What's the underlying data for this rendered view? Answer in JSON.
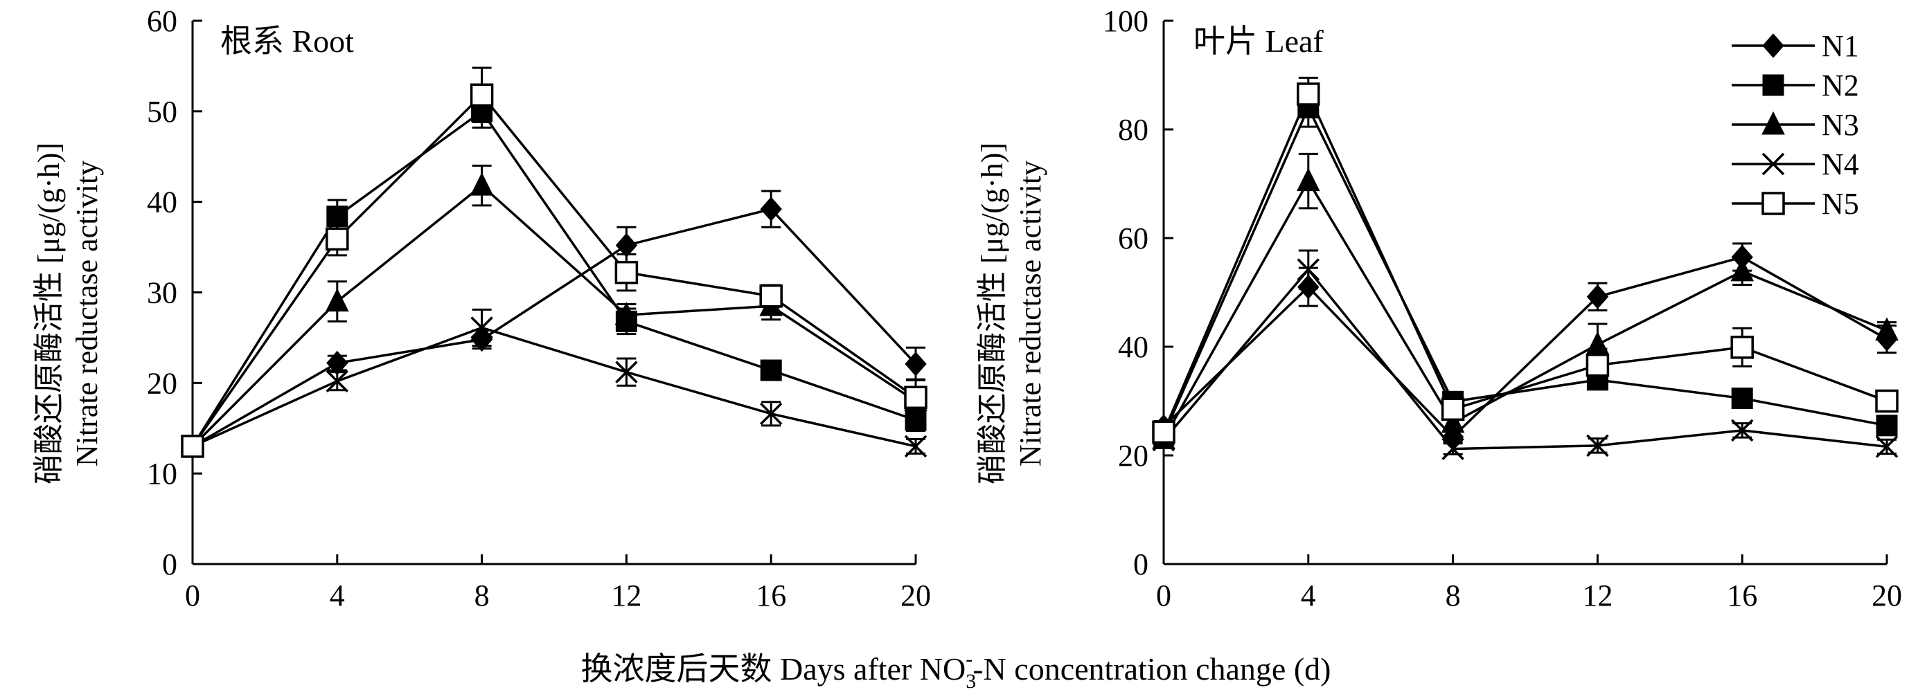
{
  "chart_data": [
    {
      "type": "line",
      "title": "根系 Root",
      "ylabel_cn": "硝酸还原酶活性 [μg/(g·h)]",
      "ylabel_en": "Nitrate reductase activity",
      "x": [
        0,
        4,
        8,
        12,
        16,
        20
      ],
      "xticks": [
        "0",
        "4",
        "8",
        "12",
        "16",
        "20"
      ],
      "xlim": [
        0,
        20
      ],
      "ylim": [
        0,
        60
      ],
      "yticks": [
        0,
        10,
        20,
        30,
        40,
        50,
        60
      ],
      "series": [
        {
          "name": "N1",
          "values": [
            13,
            22.2,
            24.8,
            35.2,
            39.2,
            22.1
          ],
          "errors": [
            0.8,
            0.8,
            1.0,
            2.0,
            2.0,
            1.8
          ]
        },
        {
          "name": "N2",
          "values": [
            13,
            38.4,
            50.0,
            26.8,
            21.4,
            15.9
          ],
          "errors": [
            0.8,
            1.8,
            1.8,
            1.4,
            1.0,
            1.2
          ]
        },
        {
          "name": "N3",
          "values": [
            13,
            29.0,
            41.8,
            27.5,
            28.5,
            18.0
          ],
          "errors": [
            0.8,
            2.2,
            2.2,
            1.2,
            1.5,
            1.2
          ]
        },
        {
          "name": "N4",
          "values": [
            13,
            20.2,
            26.1,
            21.2,
            16.6,
            13.0
          ],
          "errors": [
            0.8,
            1.0,
            2.0,
            1.5,
            1.3,
            0.8
          ]
        },
        {
          "name": "N5",
          "values": [
            13,
            35.9,
            51.8,
            32.2,
            29.6,
            18.4
          ],
          "errors": [
            0.8,
            1.8,
            3.0,
            2.0,
            1.2,
            2.0
          ]
        }
      ]
    },
    {
      "type": "line",
      "title": "叶片 Leaf",
      "ylabel_cn": "硝酸还原酶活性 [μg/(g·h)]",
      "ylabel_en": "Nitrate reductase activity",
      "x": [
        0,
        4,
        8,
        12,
        16,
        20
      ],
      "xticks": [
        "0",
        "4",
        "8",
        "12",
        "16",
        "20"
      ],
      "xlim": [
        0,
        20
      ],
      "ylim": [
        0,
        100
      ],
      "yticks": [
        0,
        20,
        40,
        60,
        80,
        100
      ],
      "series": [
        {
          "name": "N1",
          "values": [
            25.3,
            51.0,
            23.4,
            49.2,
            56.5,
            41.4
          ],
          "errors": [
            1.0,
            3.5,
            1.0,
            2.5,
            2.5,
            2.5
          ]
        },
        {
          "name": "N2",
          "values": [
            23.8,
            84.0,
            29.9,
            33.9,
            30.5,
            25.5
          ],
          "errors": [
            1.0,
            3.5,
            1.0,
            1.5,
            1.3,
            1.3
          ]
        },
        {
          "name": "N3",
          "values": [
            23.0,
            70.5,
            26.0,
            40.4,
            53.9,
            43.0
          ],
          "errors": [
            1.0,
            5.0,
            1.0,
            3.8,
            2.5,
            1.5
          ]
        },
        {
          "name": "N4",
          "values": [
            22.8,
            54.2,
            21.2,
            21.8,
            24.6,
            21.6
          ],
          "errors": [
            1.0,
            3.5,
            1.0,
            1.3,
            1.3,
            1.3
          ]
        },
        {
          "name": "N5",
          "values": [
            24.3,
            86.5,
            28.5,
            36.6,
            39.9,
            30.0
          ],
          "errors": [
            1.0,
            3.0,
            1.0,
            3.0,
            3.5,
            1.3
          ]
        }
      ]
    }
  ],
  "legend": [
    "N1",
    "N2",
    "N3",
    "N4",
    "N5"
  ],
  "xlabel": "换浓度后天数 Days after NO",
  "xlabel_sub": "3",
  "xlabel_sup": "-",
  "xlabel_tail": "-N concentration change (d)",
  "colors": {
    "line": "#000000",
    "background": "#ffffff",
    "open_fill": "#ffffff"
  }
}
